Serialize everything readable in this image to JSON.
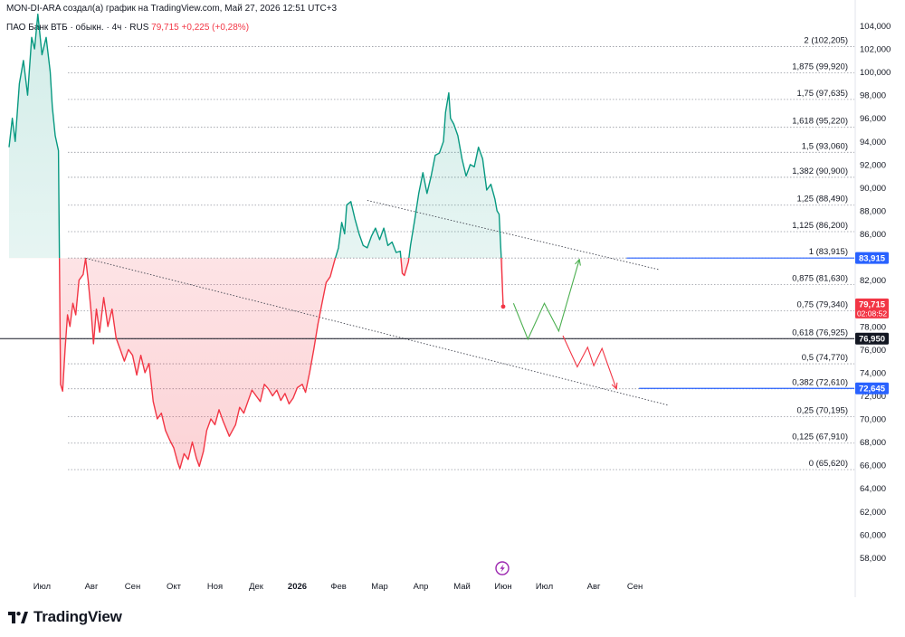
{
  "header": {
    "credit": "MON-DI-ARA создал(а) график на TradingView.com, Май 27, 2026 12:51 UTC+3",
    "symbol": "ПАО Банк ВТБ · обыкн. · 4ч · RUS",
    "last": "79,715",
    "change": "+0,225 (+0,28%)"
  },
  "brand": {
    "name": "TradingView",
    "logo": "tradingview-logo-icon",
    "event_icon": "lightning-event-icon"
  },
  "colors": {
    "up": "#089981",
    "down": "#f23645",
    "level_line": "#2962ff",
    "grid": "#e0e3eb"
  },
  "chart_data": {
    "type": "line",
    "ylim": [
      56.5,
      105
    ],
    "y_ticks": [
      "58,000",
      "60,000",
      "62,000",
      "64,000",
      "66,000",
      "68,000",
      "70,000",
      "72,000",
      "74,000",
      "76,000",
      "78,000",
      "80,000",
      "82,000",
      "84,000",
      "86,000",
      "88,000",
      "90,000",
      "92,000",
      "94,000",
      "96,000",
      "98,000",
      "100,000",
      "102,000",
      "104,000"
    ],
    "x_labels": [
      "Июл",
      "Авг",
      "Сен",
      "Окт",
      "Ноя",
      "Дек",
      "2026",
      "Фев",
      "Мар",
      "Апр",
      "Май",
      "Июн",
      "Июл",
      "Авг",
      "Сен"
    ],
    "x_label_positions": [
      0.8,
      2.0,
      3.0,
      4.0,
      5.0,
      6.0,
      7.0,
      8.0,
      9.0,
      10.0,
      11.0,
      12.0,
      13.0,
      14.2,
      15.2
    ],
    "baseline": 83.915,
    "price_series": [
      [
        0,
        93.5
      ],
      [
        0.08,
        96
      ],
      [
        0.15,
        94
      ],
      [
        0.25,
        99
      ],
      [
        0.35,
        101
      ],
      [
        0.45,
        98
      ],
      [
        0.55,
        103
      ],
      [
        0.62,
        102
      ],
      [
        0.7,
        105
      ],
      [
        0.8,
        101.5
      ],
      [
        0.9,
        103
      ],
      [
        1.0,
        100
      ],
      [
        1.05,
        97
      ],
      [
        1.12,
        94.5
      ],
      [
        1.2,
        93.2
      ],
      [
        1.25,
        73
      ],
      [
        1.3,
        72.4
      ],
      [
        1.36,
        76
      ],
      [
        1.42,
        79
      ],
      [
        1.48,
        78
      ],
      [
        1.55,
        80
      ],
      [
        1.62,
        79
      ],
      [
        1.7,
        82
      ],
      [
        1.8,
        82.5
      ],
      [
        1.86,
        83.9
      ],
      [
        1.92,
        82
      ],
      [
        2.0,
        79
      ],
      [
        2.05,
        76.5
      ],
      [
        2.12,
        79.5
      ],
      [
        2.2,
        77.5
      ],
      [
        2.3,
        80.5
      ],
      [
        2.4,
        78
      ],
      [
        2.5,
        79.5
      ],
      [
        2.6,
        77
      ],
      [
        2.7,
        76
      ],
      [
        2.8,
        75
      ],
      [
        2.9,
        76
      ],
      [
        3.0,
        75.5
      ],
      [
        3.1,
        73.8
      ],
      [
        3.2,
        75.5
      ],
      [
        3.3,
        74
      ],
      [
        3.4,
        74.8
      ],
      [
        3.5,
        71.5
      ],
      [
        3.6,
        70
      ],
      [
        3.7,
        70.5
      ],
      [
        3.8,
        69
      ],
      [
        3.9,
        68.2
      ],
      [
        4.0,
        67.5
      ],
      [
        4.1,
        66.2
      ],
      [
        4.15,
        65.7
      ],
      [
        4.25,
        67
      ],
      [
        4.35,
        66.5
      ],
      [
        4.45,
        68
      ],
      [
        4.55,
        66.6
      ],
      [
        4.62,
        65.9
      ],
      [
        4.72,
        67.2
      ],
      [
        4.8,
        69
      ],
      [
        4.9,
        70
      ],
      [
        5.0,
        69.5
      ],
      [
        5.1,
        70.8
      ],
      [
        5.2,
        69.8
      ],
      [
        5.35,
        68.5
      ],
      [
        5.5,
        69.5
      ],
      [
        5.6,
        71
      ],
      [
        5.7,
        70.5
      ],
      [
        5.8,
        71.5
      ],
      [
        5.9,
        72.5
      ],
      [
        6.0,
        72
      ],
      [
        6.1,
        71.5
      ],
      [
        6.2,
        73
      ],
      [
        6.3,
        72.6
      ],
      [
        6.4,
        72
      ],
      [
        6.5,
        72.5
      ],
      [
        6.6,
        71.6
      ],
      [
        6.7,
        72.2
      ],
      [
        6.8,
        71.3
      ],
      [
        6.9,
        71.8
      ],
      [
        7.0,
        72.7
      ],
      [
        7.12,
        73
      ],
      [
        7.2,
        72.3
      ],
      [
        7.3,
        74
      ],
      [
        7.4,
        76
      ],
      [
        7.5,
        78.2
      ],
      [
        7.6,
        80
      ],
      [
        7.7,
        81.8
      ],
      [
        7.8,
        82.3
      ],
      [
        7.9,
        83.6
      ],
      [
        8.0,
        84.8
      ],
      [
        8.08,
        87
      ],
      [
        8.15,
        86
      ],
      [
        8.2,
        88.5
      ],
      [
        8.3,
        88.8
      ],
      [
        8.4,
        87.3
      ],
      [
        8.5,
        86
      ],
      [
        8.6,
        85
      ],
      [
        8.7,
        84.8
      ],
      [
        8.8,
        85.8
      ],
      [
        8.9,
        86.5
      ],
      [
        9.0,
        85.5
      ],
      [
        9.1,
        86.5
      ],
      [
        9.2,
        85
      ],
      [
        9.3,
        85.3
      ],
      [
        9.4,
        84.4
      ],
      [
        9.5,
        84.5
      ],
      [
        9.55,
        82.6
      ],
      [
        9.6,
        82.4
      ],
      [
        9.7,
        83.6
      ],
      [
        9.75,
        85
      ],
      [
        9.85,
        87.2
      ],
      [
        9.95,
        89.5
      ],
      [
        10.05,
        91.3
      ],
      [
        10.15,
        89.5
      ],
      [
        10.25,
        91
      ],
      [
        10.35,
        92.8
      ],
      [
        10.45,
        93
      ],
      [
        10.55,
        94
      ],
      [
        10.6,
        96.5
      ],
      [
        10.68,
        98.2
      ],
      [
        10.72,
        96
      ],
      [
        10.8,
        95.5
      ],
      [
        10.9,
        94.5
      ],
      [
        11.0,
        92.5
      ],
      [
        11.1,
        91
      ],
      [
        11.2,
        92
      ],
      [
        11.3,
        91.8
      ],
      [
        11.4,
        93.5
      ],
      [
        11.5,
        92.5
      ],
      [
        11.6,
        89.8
      ],
      [
        11.7,
        90.3
      ],
      [
        11.8,
        89
      ],
      [
        11.85,
        88
      ],
      [
        11.9,
        87.7
      ],
      [
        11.95,
        84.2
      ],
      [
        12.0,
        79.715
      ]
    ],
    "forecast_up": [
      [
        12.25,
        80
      ],
      [
        12.6,
        76.9
      ],
      [
        13.0,
        80
      ],
      [
        13.35,
        77.6
      ],
      [
        13.85,
        83.8
      ]
    ],
    "forecast_down": [
      [
        13.45,
        77.2
      ],
      [
        13.8,
        74.5
      ],
      [
        14.05,
        76.2
      ],
      [
        14.2,
        74.6
      ],
      [
        14.4,
        76.1
      ],
      [
        14.75,
        72.6
      ]
    ],
    "trendlines": [
      {
        "from": [
          8.7,
          88.9
        ],
        "to": [
          15.8,
          82.9
        ]
      },
      {
        "from": [
          1.86,
          83.9
        ],
        "to": [
          16.0,
          71.2
        ]
      }
    ],
    "fib_levels": [
      {
        "label": "2 (102,205)",
        "value": 102.205
      },
      {
        "label": "1,875 (99,920)",
        "value": 99.92
      },
      {
        "label": "1,75 (97,635)",
        "value": 97.635
      },
      {
        "label": "1,618 (95,220)",
        "value": 95.22
      },
      {
        "label": "1,5 (93,060)",
        "value": 93.06
      },
      {
        "label": "1,382 (90,900)",
        "value": 90.9
      },
      {
        "label": "1,25 (88,490)",
        "value": 88.49
      },
      {
        "label": "1,125 (86,200)",
        "value": 86.2
      },
      {
        "label": "1 (83,915)",
        "value": 83.915
      },
      {
        "label": "0,875 (81,630)",
        "value": 81.63
      },
      {
        "label": "0,75 (79,340)",
        "value": 79.34
      },
      {
        "label": "0,618 (76,925)",
        "value": 76.925
      },
      {
        "label": "0,5 (74,770)",
        "value": 74.77
      },
      {
        "label": "0,382 (72,610)",
        "value": 72.61
      },
      {
        "label": "0,25 (70,195)",
        "value": 70.195
      },
      {
        "label": "0,125 (67,910)",
        "value": 67.91
      },
      {
        "label": "0 (65,620)",
        "value": 65.62
      }
    ],
    "horizontal_lines": [
      {
        "value": 76.95,
        "label": "76,950",
        "color": "#131722"
      }
    ],
    "level_rays": [
      {
        "value": 83.915,
        "label": "83,915",
        "color": "#2962ff",
        "from_x": 15.0
      },
      {
        "value": 72.645,
        "label": "72,645",
        "color": "#2962ff",
        "from_x": 15.3
      }
    ],
    "price_badge": {
      "value": 79.715,
      "label": "79,715",
      "countdown": "02:08:52",
      "color": "#f23645"
    }
  }
}
